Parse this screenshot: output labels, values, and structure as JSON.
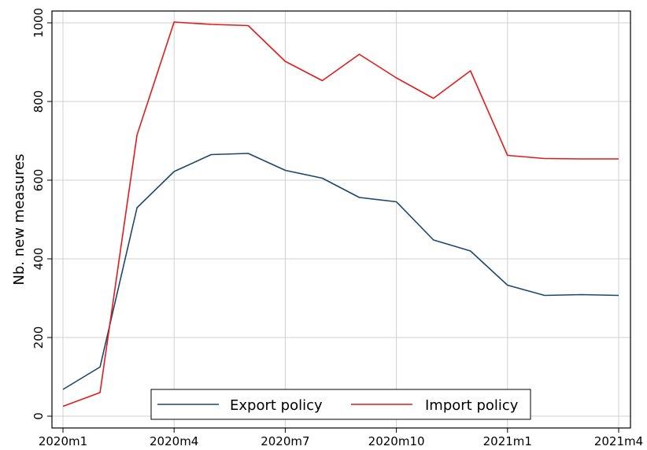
{
  "chart_data": {
    "type": "line",
    "title": "",
    "xlabel": "",
    "ylabel": "Nb. new measures",
    "x_ticks": [
      "2020m1",
      "2020m4",
      "2020m7",
      "2020m10",
      "2021m1",
      "2021m4"
    ],
    "y_ticks": [
      0,
      200,
      400,
      600,
      800,
      1000
    ],
    "ylim": [
      -30,
      1030
    ],
    "grid": true,
    "legend_position": "bottom-center",
    "categories": [
      "2020m1",
      "2020m2",
      "2020m3",
      "2020m4",
      "2020m5",
      "2020m6",
      "2020m7",
      "2020m8",
      "2020m9",
      "2020m10",
      "2020m11",
      "2020m12",
      "2021m1",
      "2021m2",
      "2021m3",
      "2021m4"
    ],
    "series": [
      {
        "name": "Export policy",
        "color": "#1a476f",
        "values": [
          68,
          125,
          530,
          622,
          665,
          668,
          625,
          605,
          556,
          545,
          448,
          420,
          333,
          307,
          309,
          307
        ]
      },
      {
        "name": "Import policy",
        "color": "#e41a1c",
        "values": [
          25,
          60,
          715,
          1002,
          996,
          993,
          902,
          853,
          920,
          860,
          808,
          878,
          663,
          655,
          654,
          654
        ]
      }
    ]
  }
}
